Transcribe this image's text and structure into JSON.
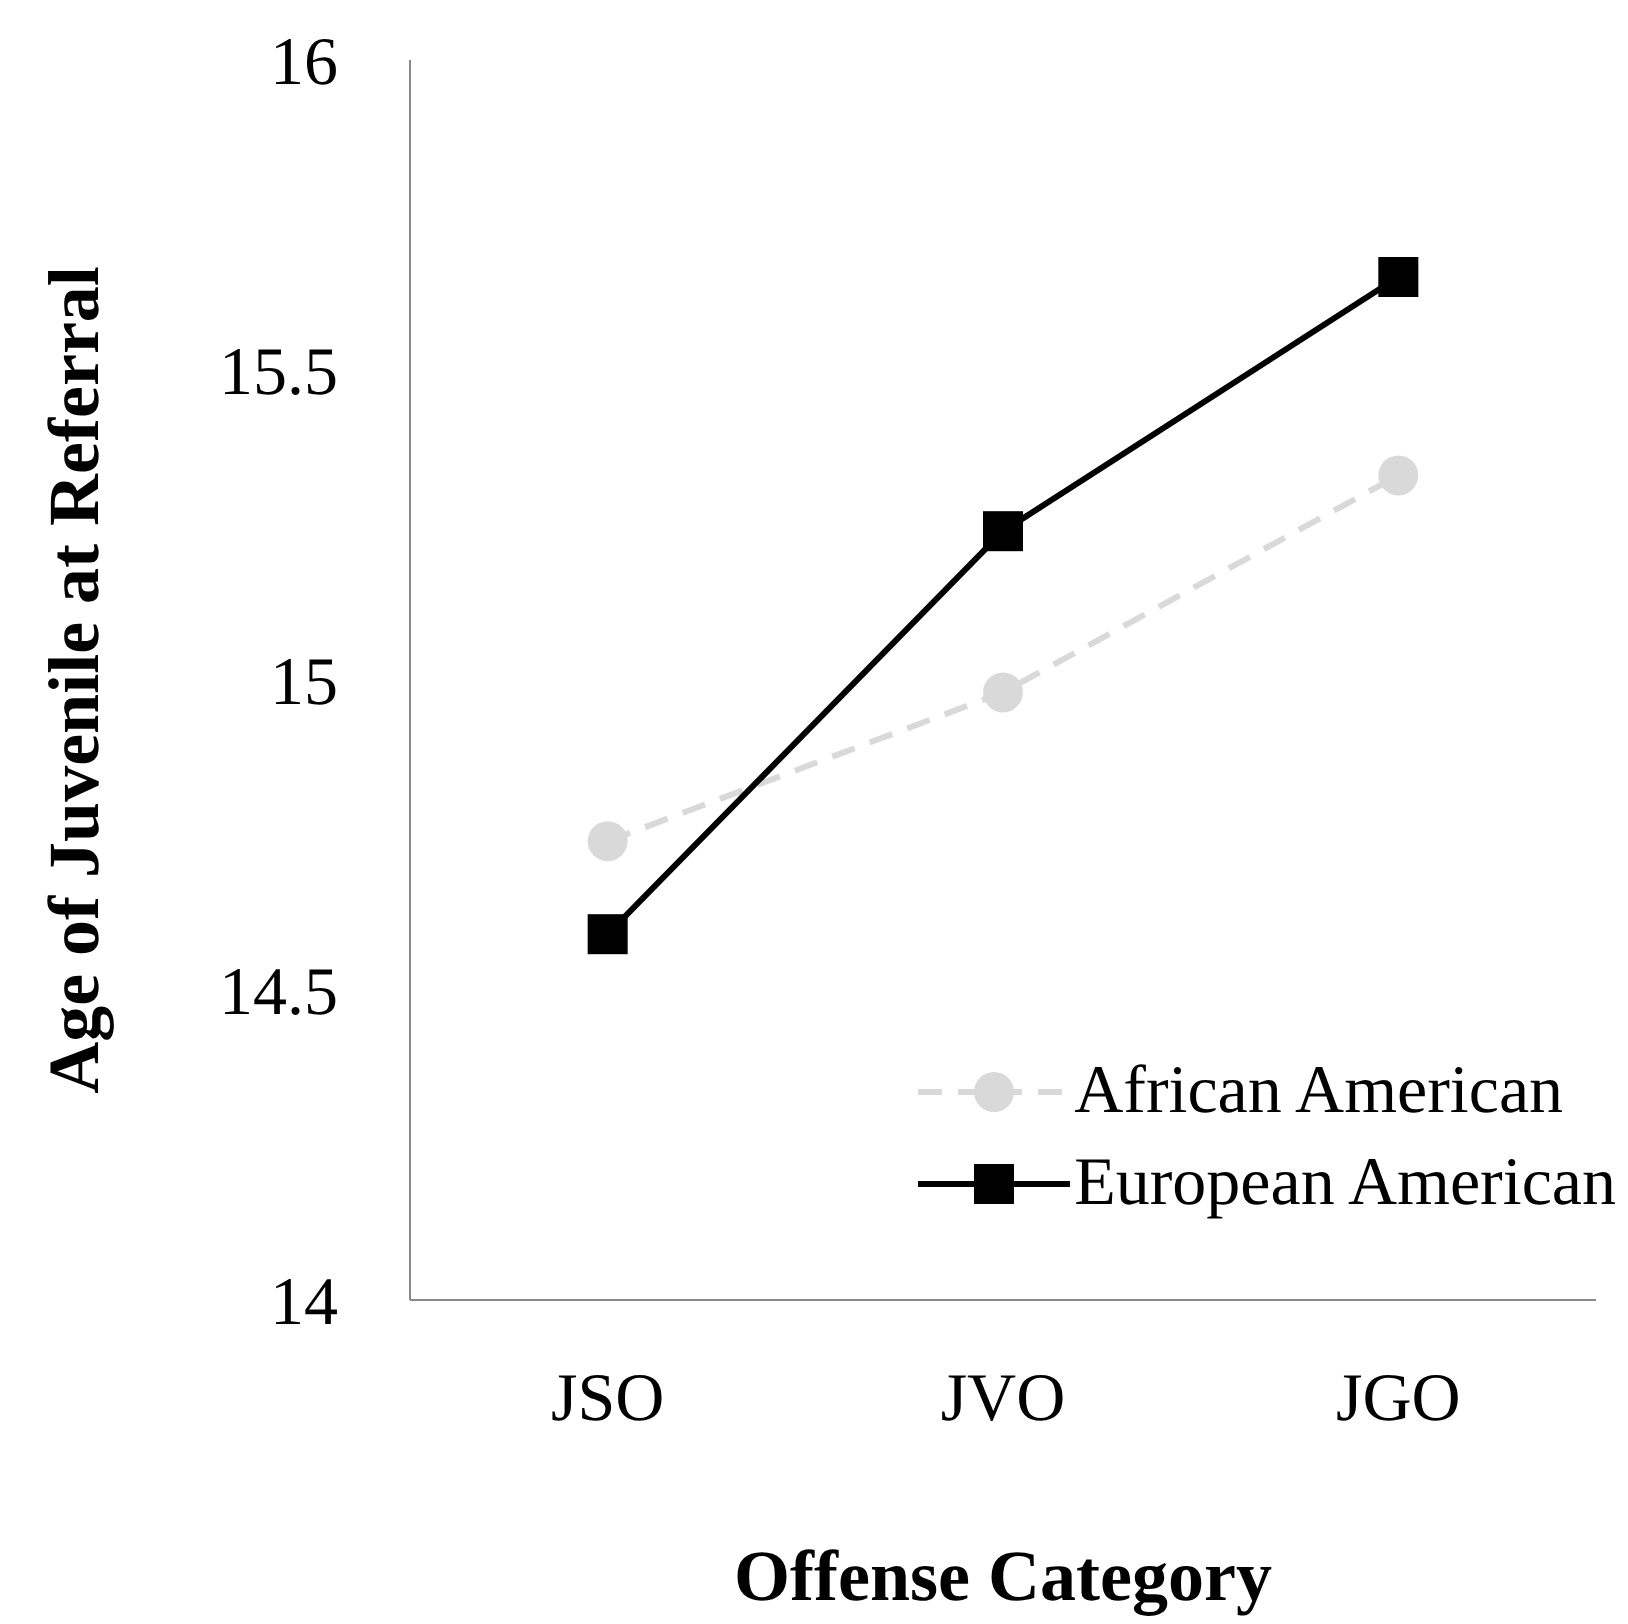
{
  "chart_data": {
    "type": "line",
    "xlabel": "Offense Category",
    "ylabel": "Age of Juvenile at Referral",
    "categories": [
      "JSO",
      "JVO",
      "JGO"
    ],
    "series": [
      {
        "name": "African American",
        "color": "#d9d9d9",
        "values": [
          14.74,
          14.98,
          15.33
        ],
        "marker": "circle",
        "line_style": "dashed"
      },
      {
        "name": "European American",
        "color": "#000000",
        "values": [
          14.59,
          15.24,
          15.65
        ],
        "marker": "square",
        "line_style": "solid"
      }
    ],
    "ylim": [
      14,
      16
    ],
    "yticks": [
      14,
      14.5,
      15,
      15.5,
      16
    ],
    "grid": false,
    "legend": "bottom right"
  }
}
